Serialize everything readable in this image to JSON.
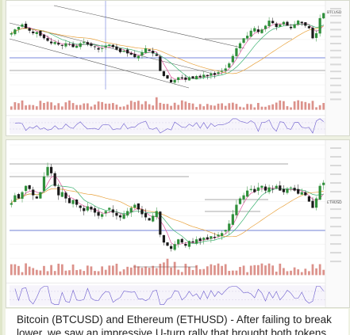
{
  "caption": {
    "text": "Bitcoin (BTCUSD) and Ethereum (ETHUSD) - After failing to break lower, we saw an impressive U-turn rally that brought both tokens"
  },
  "colors": {
    "up_candle": "#2f8f3a",
    "down_candle": "#1a1a1a",
    "ma_fast": "#e0529c",
    "ma_mid": "#3cb371",
    "ma_slow": "#e8a13a",
    "channel": "#555555",
    "support": "#4a5fd1",
    "rsi": "#6a5acd",
    "volume": "#c0392b"
  },
  "chart_data": [
    {
      "type": "candlestick",
      "symbol_label": "BTCUSD",
      "series": [
        {
          "name": "BTCUSD",
          "values": [
            70,
            73,
            75,
            77,
            74,
            72,
            70,
            71,
            68,
            66,
            64,
            62,
            63,
            61,
            60,
            62,
            61,
            59,
            60,
            62,
            63,
            61,
            60,
            59,
            57,
            58,
            60,
            61,
            59,
            57,
            55,
            56,
            54,
            53,
            51,
            52,
            55,
            58,
            56,
            54,
            52,
            40,
            36,
            34,
            31,
            33,
            35,
            34,
            33,
            35,
            34,
            36,
            35,
            37,
            36,
            38,
            37,
            39,
            40,
            42,
            46,
            52,
            58,
            62,
            66,
            68,
            72,
            74,
            71,
            73,
            76,
            80,
            78,
            75,
            77,
            79,
            76,
            74,
            77,
            80,
            78,
            76,
            74,
            66,
            70,
            82,
            86
          ]
        }
      ]
    },
    {
      "type": "candlestick",
      "symbol_label": "ETHUSD",
      "series": [
        {
          "name": "ETHUSD",
          "values": [
            55,
            60,
            58,
            62,
            66,
            64,
            60,
            58,
            62,
            72,
            78,
            74,
            66,
            60,
            62,
            58,
            55,
            57,
            54,
            52,
            50,
            53,
            51,
            49,
            47,
            48,
            50,
            52,
            49,
            47,
            46,
            48,
            50,
            52,
            54,
            51,
            48,
            46,
            44,
            47,
            50,
            35,
            30,
            28,
            26,
            29,
            32,
            30,
            28,
            31,
            30,
            32,
            31,
            33,
            32,
            34,
            33,
            35,
            36,
            38,
            42,
            48,
            54,
            58,
            60,
            63,
            64,
            62,
            65,
            66,
            63,
            65,
            64,
            66,
            63,
            62,
            64,
            65,
            63,
            61,
            62,
            60,
            56,
            52,
            58,
            66,
            68
          ]
        }
      ]
    }
  ]
}
